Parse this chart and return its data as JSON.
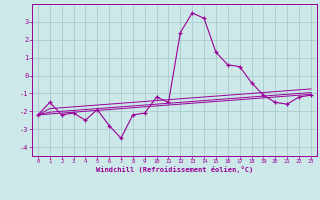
{
  "x": [
    0,
    1,
    2,
    3,
    4,
    5,
    6,
    7,
    8,
    9,
    10,
    11,
    12,
    13,
    14,
    15,
    16,
    17,
    18,
    19,
    20,
    21,
    22,
    23
  ],
  "y_main": [
    -2.2,
    -1.5,
    -2.2,
    -2.1,
    -2.5,
    -1.9,
    -2.8,
    -3.5,
    -2.2,
    -2.1,
    -1.2,
    -1.5,
    2.4,
    3.5,
    3.2,
    1.3,
    0.6,
    0.5,
    -0.4,
    -1.1,
    -1.5,
    -1.6,
    -1.2,
    -1.1
  ],
  "y_line1": [
    -2.2,
    -1.85,
    -1.8,
    -1.75,
    -1.7,
    -1.65,
    -1.6,
    -1.55,
    -1.5,
    -1.45,
    -1.4,
    -1.35,
    -1.3,
    -1.25,
    -1.2,
    -1.15,
    -1.1,
    -1.05,
    -1.0,
    -0.95,
    -0.9,
    -0.85,
    -0.8,
    -0.75
  ],
  "y_line2": [
    -2.2,
    -2.05,
    -2.0,
    -1.95,
    -1.9,
    -1.85,
    -1.8,
    -1.75,
    -1.7,
    -1.65,
    -1.6,
    -1.55,
    -1.5,
    -1.45,
    -1.4,
    -1.35,
    -1.3,
    -1.25,
    -1.2,
    -1.15,
    -1.1,
    -1.05,
    -1.0,
    -0.95
  ],
  "y_line3": [
    -2.2,
    -2.15,
    -2.1,
    -2.05,
    -2.0,
    -1.95,
    -1.9,
    -1.85,
    -1.8,
    -1.75,
    -1.7,
    -1.65,
    -1.6,
    -1.55,
    -1.5,
    -1.45,
    -1.4,
    -1.35,
    -1.3,
    -1.25,
    -1.2,
    -1.15,
    -1.1,
    -1.05
  ],
  "line_color": "#990099",
  "bg_color": "#cce8e8",
  "grid_color": "#aacccc",
  "xlabel": "Windchill (Refroidissement éolien,°C)",
  "ylim": [
    -4.5,
    4.0
  ],
  "xlim": [
    -0.5,
    23.5
  ],
  "yticks": [
    -4,
    -3,
    -2,
    -1,
    0,
    1,
    2,
    3
  ],
  "xticks": [
    0,
    1,
    2,
    3,
    4,
    5,
    6,
    7,
    8,
    9,
    10,
    11,
    12,
    13,
    14,
    15,
    16,
    17,
    18,
    19,
    20,
    21,
    22,
    23
  ]
}
